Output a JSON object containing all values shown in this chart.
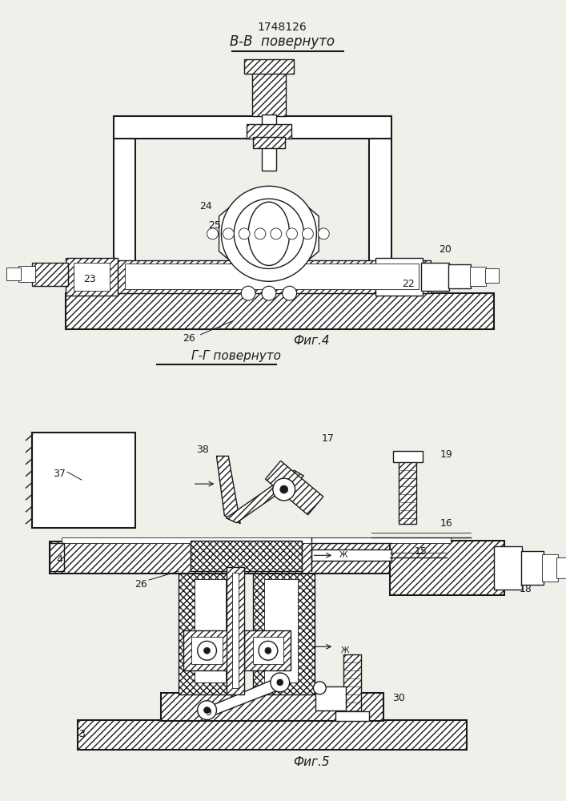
{
  "title": "1748126",
  "fig4_label": "Фиг.4",
  "fig5_label": "Фиг.5",
  "section_bb": "B-B  повернуто",
  "section_gg": "Г-Г повернуто",
  "bg_color": "#f0f0eb",
  "line_color": "#1a1a1a"
}
